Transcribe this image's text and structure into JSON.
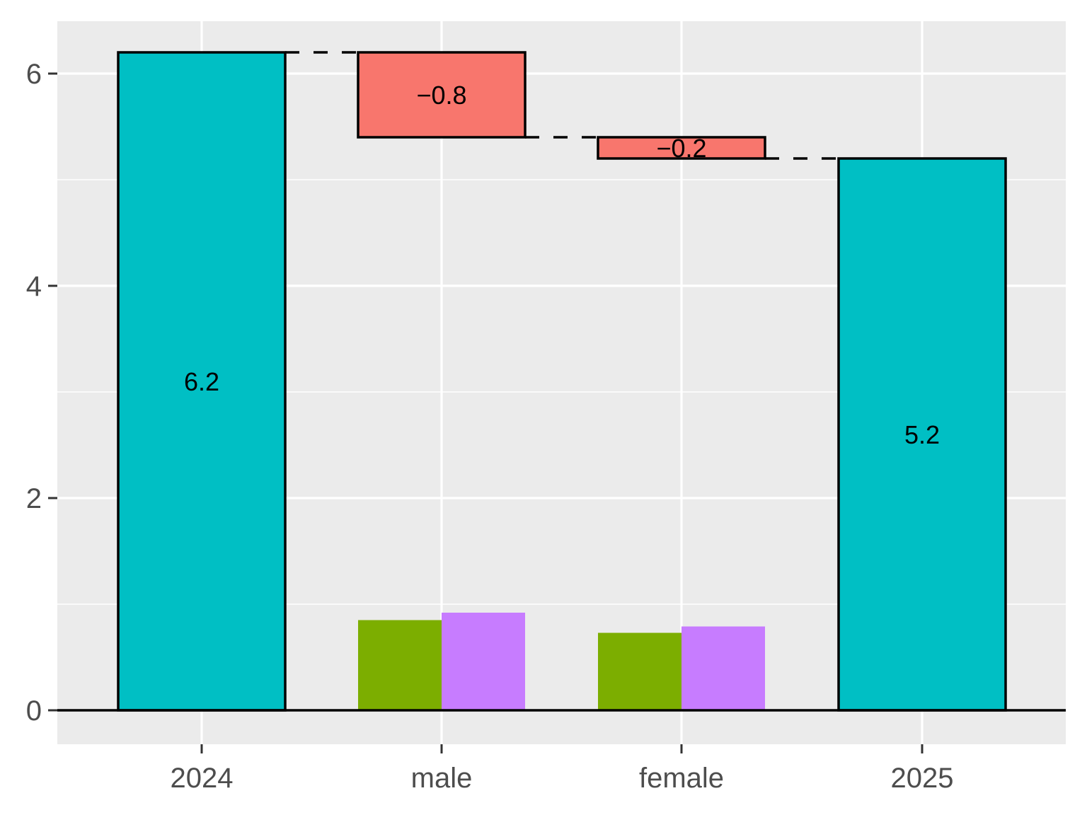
{
  "chart_data": {
    "type": "bar",
    "title": "",
    "xlabel": "",
    "ylabel": "",
    "categories": [
      "2024",
      "male",
      "female",
      "2025"
    ],
    "ylim": [
      -0.31,
      6.5
    ],
    "yticks": [
      0,
      2,
      4,
      6
    ],
    "ytick_labels": [
      "0",
      "2",
      "4",
      "6"
    ],
    "grid": true,
    "totals": [
      {
        "category": "2024",
        "value": 6.2,
        "label": "6.2"
      },
      {
        "category": "2025",
        "value": 5.2,
        "label": "5.2"
      }
    ],
    "changes": [
      {
        "category": "male",
        "start": 6.2,
        "end": 5.4,
        "value": -0.8,
        "label": "−0.8"
      },
      {
        "category": "female",
        "start": 5.4,
        "end": 5.2,
        "value": -0.2,
        "label": "−0.2"
      }
    ],
    "sub_bars": [
      {
        "category": "male",
        "values": [
          0.85,
          0.92
        ]
      },
      {
        "category": "female",
        "values": [
          0.73,
          0.79
        ]
      }
    ],
    "colors": {
      "total": "#00BFC4",
      "decrease": "#F8766D",
      "sub_series": [
        "#7CAE00",
        "#C77CFF"
      ],
      "panel": "#EBEBEB",
      "grid": "#FFFFFF"
    }
  }
}
